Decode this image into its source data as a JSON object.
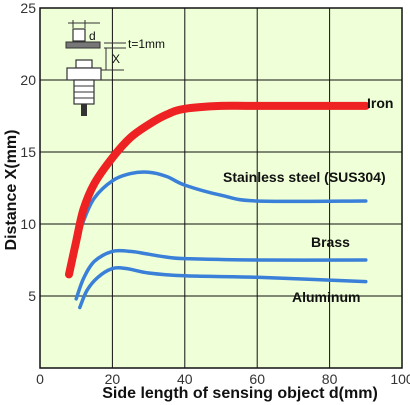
{
  "chart_data": {
    "type": "line",
    "xlabel": "Side length of sensing object d(mm)",
    "ylabel": "Distance X(mm)",
    "xlim": [
      0,
      100
    ],
    "ylim": [
      0,
      25
    ],
    "xticks": [
      0,
      20,
      40,
      60,
      80,
      100
    ],
    "yticks": [
      5,
      10,
      15,
      20,
      25
    ],
    "grid": true,
    "background": "#efffd8",
    "series": [
      {
        "name": "Iron",
        "color": "#ee2222",
        "x": [
          8,
          10,
          12,
          15,
          20,
          25,
          30,
          35,
          40,
          50,
          60,
          90
        ],
        "y": [
          6.5,
          8.8,
          11,
          12.8,
          14.6,
          16,
          16.9,
          17.6,
          18.0,
          18.2,
          18.2,
          18.2
        ]
      },
      {
        "name": "Stainless steel (SUS304)",
        "color": "#3a7fd8",
        "x": [
          8,
          10,
          12,
          15,
          20,
          25,
          30,
          35,
          40,
          50,
          60,
          90
        ],
        "y": [
          6.6,
          8.6,
          10.2,
          11.8,
          13,
          13.5,
          13.6,
          13.3,
          12.7,
          12,
          11.6,
          11.6
        ]
      },
      {
        "name": "Brass",
        "color": "#3a7fd8",
        "x": [
          10,
          12,
          15,
          20,
          25,
          30,
          35,
          40,
          60,
          90
        ],
        "y": [
          4.8,
          6.2,
          7.4,
          8.1,
          8.1,
          7.9,
          7.7,
          7.6,
          7.5,
          7.5
        ]
      },
      {
        "name": "Aluminum",
        "color": "#3a7fd8",
        "x": [
          11,
          13,
          16,
          20,
          24,
          30,
          40,
          60,
          90
        ],
        "y": [
          4.2,
          5.4,
          6.3,
          6.9,
          6.9,
          6.6,
          6.4,
          6.3,
          6.0
        ]
      }
    ]
  },
  "inset": {
    "d_label": "d",
    "t_label": "t=1mm",
    "x_label": "X"
  }
}
